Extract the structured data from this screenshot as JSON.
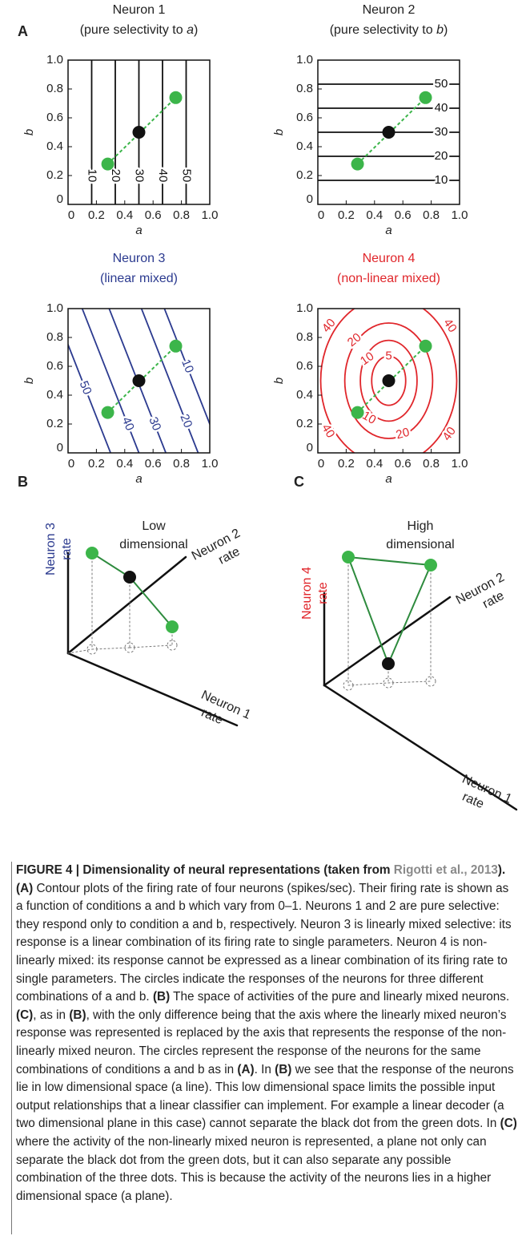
{
  "panel_labels": [
    "A",
    "B",
    "C"
  ],
  "panel_a": {
    "axis_ticks": [
      "0",
      "0.2",
      "0.4",
      "0.6",
      "0.8",
      "1.0"
    ],
    "plots": [
      {
        "title": "Neuron 1",
        "subtitle": [
          "(pure selectivity to ",
          "a",
          ")"
        ],
        "xlabel": "a",
        "ylabel": "b",
        "contour_labels": [
          "10",
          "20",
          "30",
          "40",
          "50"
        ]
      },
      {
        "title": "Neuron 2",
        "subtitle": [
          "(pure selectivity to ",
          "b",
          ")"
        ],
        "xlabel": "a",
        "ylabel": "b",
        "contour_labels": [
          "10",
          "20",
          "30",
          "40",
          "50"
        ]
      },
      {
        "title": "Neuron 3",
        "subtitle": [
          "(linear mixed)"
        ],
        "xlabel": "a",
        "ylabel": "b",
        "contour_labels": [
          "50",
          "40",
          "30",
          "20",
          "10"
        ]
      },
      {
        "title": "Neuron 4",
        "subtitle": [
          "(non-linear mixed)"
        ],
        "xlabel": "a",
        "ylabel": "b",
        "contour_labels": [
          "40",
          "40",
          "40",
          "40",
          "20",
          "20",
          "10",
          "10",
          "5"
        ]
      }
    ]
  },
  "panel_b": {
    "title": [
      "Low",
      "dimensional"
    ],
    "vertical_axis": [
      "Neuron 3",
      "rate"
    ],
    "depth_axis": [
      "Neuron 2",
      "rate"
    ],
    "horizontal_axis": [
      "Neuron 1",
      "rate"
    ]
  },
  "panel_c": {
    "title": [
      "High",
      "dimensional"
    ],
    "vertical_axis": [
      "Neuron 4",
      "rate"
    ],
    "depth_axis": [
      "Neuron 2",
      "rate"
    ],
    "horizontal_axis": [
      "Neuron 1",
      "rate"
    ]
  },
  "caption": {
    "segments": [
      "FIGURE 4 | Dimensionality of neural representations (taken from ",
      "Rigotti et al., 2013",
      "). (A)",
      " Contour plots of the firing rate of four neurons (spikes/sec). Their firing rate is shown as a function of conditions a and b which vary from 0–1. Neurons 1 and 2 are pure selective: they respond only to condition a and b, respectively. Neuron 3 is linearly mixed selective: its response is a linear combination of its firing rate to single parameters. Neuron 4 is non-linearly mixed: its response cannot be expressed as a linear combination of its firing rate to single parameters. The circles indicate the responses of the neurons for three different combinations of a and b. ",
      "(B)",
      " The space of activities of the pure and linearly mixed neurons. ",
      "(C)",
      ", as in ",
      "(B)",
      ", with the only difference being that the axis where the linearly mixed neuron’s response was represented is replaced by the axis that represents the response of the non-linearly mixed neuron. The circles represent the response of the neurons for the same combinations of conditions a and b as in ",
      "(A)",
      ". In ",
      "(B)",
      " we see that the response of the neurons lie in low dimensional space (a line). This low dimensional space limits the possible input output relationships that a linear classifier can implement. For example a linear decoder (a two dimensional plane in this case) cannot separate the black dot from the green dots. In ",
      "(C)",
      " where the activity of the non-linearly mixed neuron is represented, a plane not only can separate the black dot from the green dots, but it can also separate any possible combination of the three dots. This is because the activity of the neurons lies in a higher dimensional space (a plane)."
    ]
  }
}
